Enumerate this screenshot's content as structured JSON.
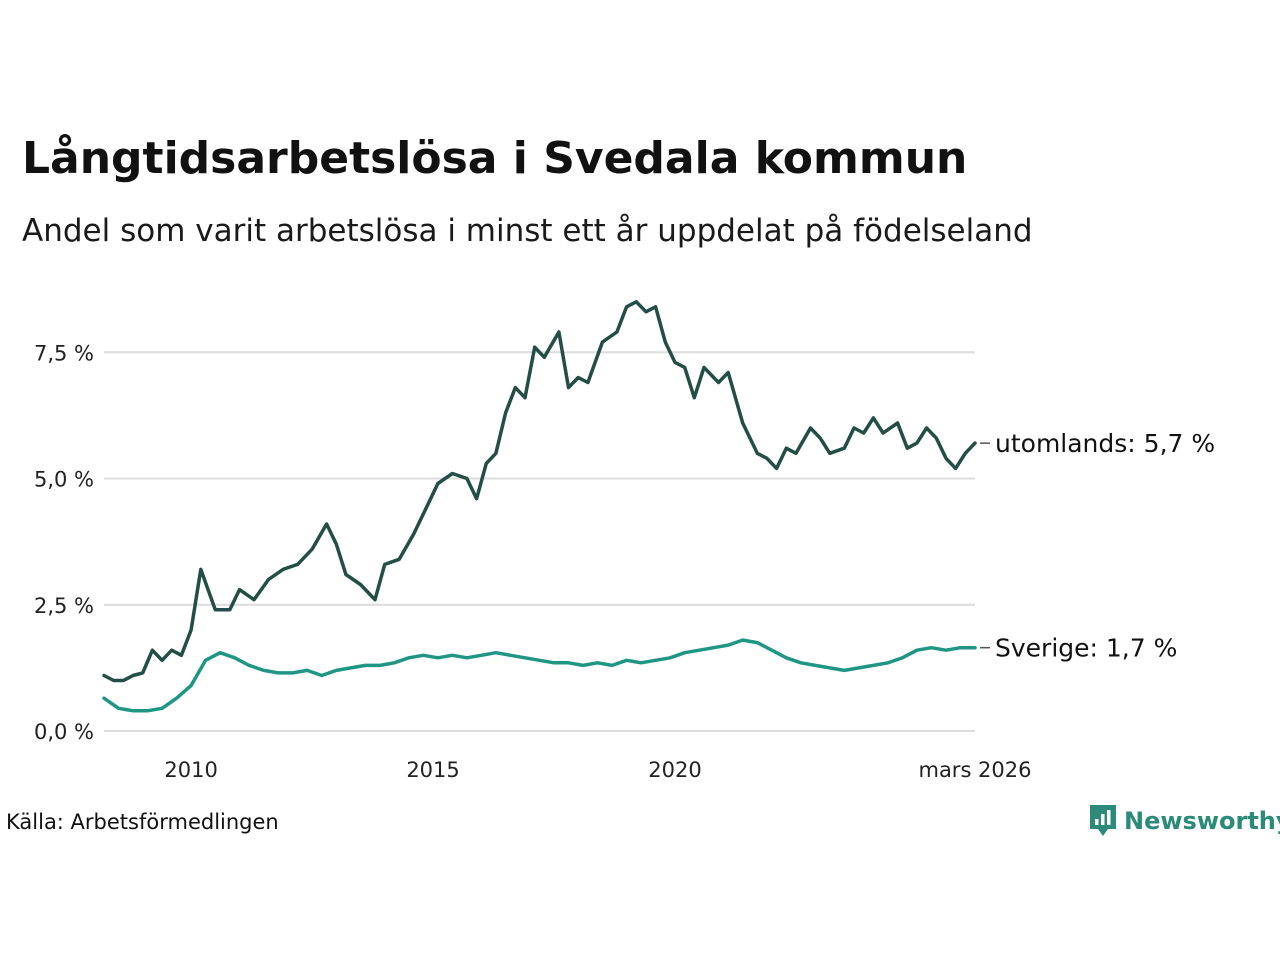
{
  "header": {
    "title": "Långtidsarbetslösa i Svedala kommun",
    "subtitle": "Andel som varit arbetslösa i minst ett år uppdelat på födelseland"
  },
  "footer": {
    "source": "Källa: Arbetsförmedlingen",
    "brand": "Newsworthy"
  },
  "colors": {
    "utomlands": "#234e45",
    "sverige": "#1f9684",
    "grid": "#dcdcdc",
    "brand": "#2b8a78"
  },
  "chart_data": {
    "type": "line",
    "title": "Långtidsarbetslösa i Svedala kommun",
    "xlabel": "",
    "ylabel": "",
    "xlim": [
      2008.2,
      2026.2
    ],
    "ylim": [
      0,
      8.6
    ],
    "grid": true,
    "y_ticks": [
      {
        "value": 0,
        "label": "0,0 %"
      },
      {
        "value": 2.5,
        "label": "2,5 %"
      },
      {
        "value": 5,
        "label": "5,0 %"
      },
      {
        "value": 7.5,
        "label": "7,5 %"
      }
    ],
    "x_ticks": [
      {
        "value": 2010,
        "label": "2010"
      },
      {
        "value": 2015,
        "label": "2015"
      },
      {
        "value": 2020,
        "label": "2020"
      },
      {
        "value": 2026.2,
        "label": "mars 2026"
      }
    ],
    "series": [
      {
        "name": "utomlands",
        "end_label": "utomlands: 5,7 %",
        "x": [
          2008.2,
          2008.4,
          2008.6,
          2008.8,
          2009.0,
          2009.2,
          2009.4,
          2009.6,
          2009.8,
          2010.0,
          2010.2,
          2010.5,
          2010.8,
          2011.0,
          2011.3,
          2011.6,
          2011.9,
          2012.2,
          2012.5,
          2012.8,
          2013.0,
          2013.2,
          2013.5,
          2013.8,
          2014.0,
          2014.3,
          2014.6,
          2014.9,
          2015.1,
          2015.4,
          2015.7,
          2015.9,
          2016.1,
          2016.3,
          2016.5,
          2016.7,
          2016.9,
          2017.1,
          2017.3,
          2017.6,
          2017.8,
          2018.0,
          2018.2,
          2018.5,
          2018.8,
          2019.0,
          2019.2,
          2019.4,
          2019.6,
          2019.8,
          2020.0,
          2020.2,
          2020.4,
          2020.6,
          2020.9,
          2021.1,
          2021.4,
          2021.7,
          2021.9,
          2022.1,
          2022.3,
          2022.5,
          2022.8,
          2023.0,
          2023.2,
          2023.5,
          2023.7,
          2023.9,
          2024.1,
          2024.3,
          2024.6,
          2024.8,
          2025.0,
          2025.2,
          2025.4,
          2025.6,
          2025.8,
          2026.0,
          2026.2
        ],
        "values": [
          1.1,
          1.0,
          1.0,
          1.1,
          1.15,
          1.6,
          1.4,
          1.6,
          1.5,
          2.0,
          3.2,
          2.4,
          2.4,
          2.8,
          2.6,
          3.0,
          3.2,
          3.3,
          3.6,
          4.1,
          3.7,
          3.1,
          2.9,
          2.6,
          3.3,
          3.4,
          3.9,
          4.5,
          4.9,
          5.1,
          5.0,
          4.6,
          5.3,
          5.5,
          6.3,
          6.8,
          6.6,
          7.6,
          7.4,
          7.9,
          6.8,
          7.0,
          6.9,
          7.7,
          7.9,
          8.4,
          8.5,
          8.3,
          8.4,
          7.7,
          7.3,
          7.2,
          6.6,
          7.2,
          6.9,
          7.1,
          6.1,
          5.5,
          5.4,
          5.2,
          5.6,
          5.5,
          6.0,
          5.8,
          5.5,
          5.6,
          6.0,
          5.9,
          6.2,
          5.9,
          6.1,
          5.6,
          5.7,
          6.0,
          5.8,
          5.4,
          5.2,
          5.5,
          5.7
        ]
      },
      {
        "name": "Sverige",
        "end_label": "Sverige: 1,7 %",
        "x": [
          2008.2,
          2008.5,
          2008.8,
          2009.1,
          2009.4,
          2009.7,
          2010.0,
          2010.3,
          2010.6,
          2010.9,
          2011.2,
          2011.5,
          2011.8,
          2012.1,
          2012.4,
          2012.7,
          2013.0,
          2013.3,
          2013.6,
          2013.9,
          2014.2,
          2014.5,
          2014.8,
          2015.1,
          2015.4,
          2015.7,
          2016.0,
          2016.3,
          2016.6,
          2016.9,
          2017.2,
          2017.5,
          2017.8,
          2018.1,
          2018.4,
          2018.7,
          2019.0,
          2019.3,
          2019.6,
          2019.9,
          2020.2,
          2020.5,
          2020.8,
          2021.1,
          2021.4,
          2021.7,
          2022.0,
          2022.3,
          2022.6,
          2022.9,
          2023.2,
          2023.5,
          2023.8,
          2024.1,
          2024.4,
          2024.7,
          2025.0,
          2025.3,
          2025.6,
          2025.9,
          2026.2
        ],
        "values": [
          0.65,
          0.45,
          0.4,
          0.4,
          0.45,
          0.65,
          0.9,
          1.4,
          1.55,
          1.45,
          1.3,
          1.2,
          1.15,
          1.15,
          1.2,
          1.1,
          1.2,
          1.25,
          1.3,
          1.3,
          1.35,
          1.45,
          1.5,
          1.45,
          1.5,
          1.45,
          1.5,
          1.55,
          1.5,
          1.45,
          1.4,
          1.35,
          1.35,
          1.3,
          1.35,
          1.3,
          1.4,
          1.35,
          1.4,
          1.45,
          1.55,
          1.6,
          1.65,
          1.7,
          1.8,
          1.75,
          1.6,
          1.45,
          1.35,
          1.3,
          1.25,
          1.2,
          1.25,
          1.3,
          1.35,
          1.45,
          1.6,
          1.65,
          1.6,
          1.65,
          1.65
        ]
      }
    ]
  }
}
